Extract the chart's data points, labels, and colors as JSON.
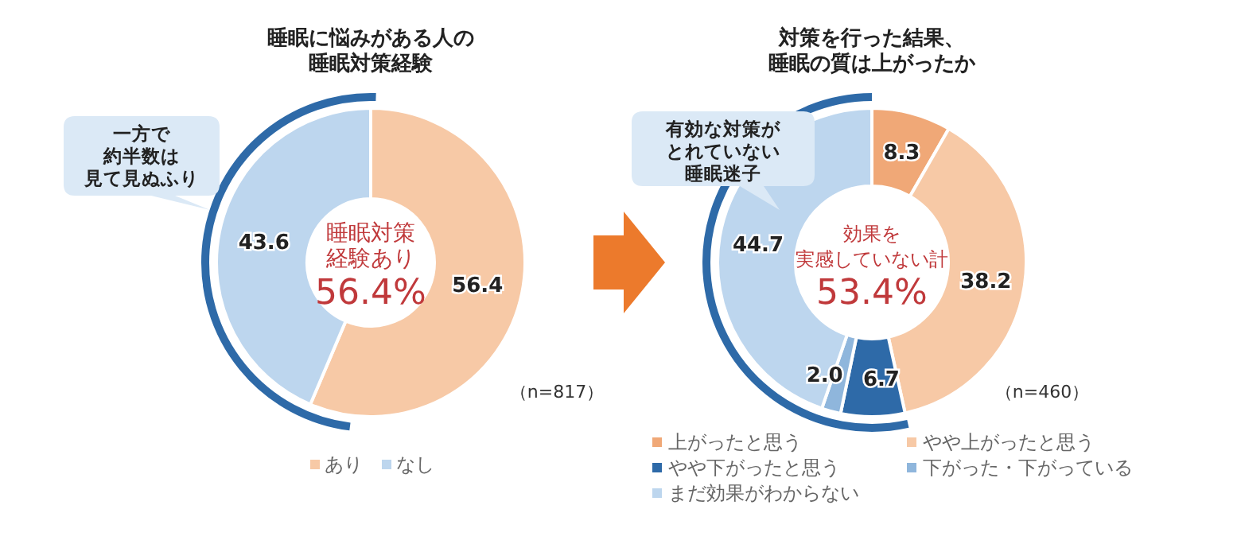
{
  "chart_data": [
    {
      "type": "donut",
      "title": "睡眠に悩みがある人の睡眠対策経験",
      "categories": [
        "あり",
        "なし"
      ],
      "values": [
        56.4,
        43.6
      ],
      "colors": [
        "#f7c9a6",
        "#bdd6ee"
      ],
      "value_labels": [
        "56.4",
        "43.6"
      ],
      "legend": "bottom",
      "annotations": [
        "睡眠対策経験あり",
        "56.4%",
        "一方で約半数は見て見ぬふり",
        "（n=817）"
      ]
    },
    {
      "type": "donut",
      "title": "対策を行った結果、睡眠の質は上がったか",
      "categories": [
        "上がったと思う",
        "やや上がったと思う",
        "やや下がったと思う",
        "下がった・下がっている",
        "まだ効果がわからない"
      ],
      "values": [
        8.3,
        38.2,
        6.7,
        2.0,
        44.7
      ],
      "colors": [
        "#f0a877",
        "#f7c9a6",
        "#2e6aa8",
        "#8fb6dc",
        "#bdd6ee"
      ],
      "value_labels": [
        "8.3",
        "38.2",
        "6.7",
        "2.0",
        "44.7"
      ],
      "legend": "bottom",
      "annotations": [
        "効果を実感していない計",
        "53.4%",
        "有効な対策がとれていない睡眠迷子",
        "（n=460）"
      ]
    }
  ]
}
